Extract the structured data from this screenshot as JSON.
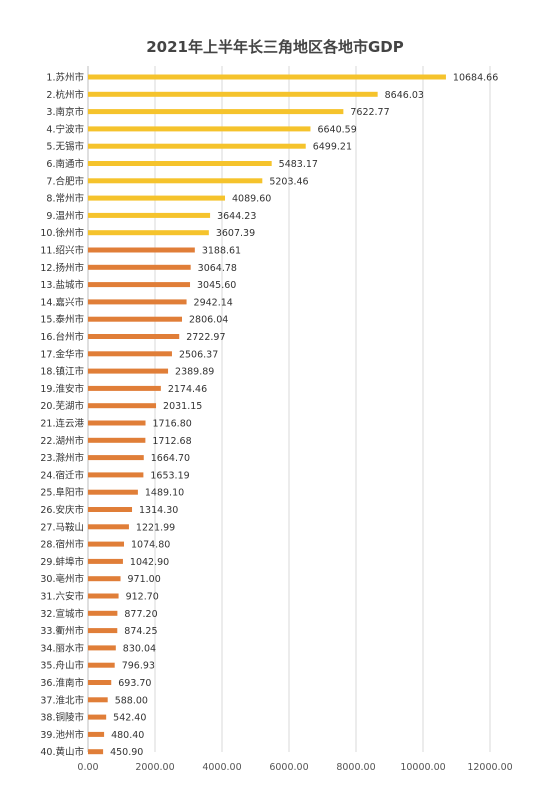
{
  "colors": {
    "top10": "#F5C32C",
    "others": "#E07E38",
    "background": "#FFFFFF",
    "grid": "#D9D9D9"
  },
  "chart_data": {
    "type": "bar",
    "orientation": "horizontal",
    "title": "2021年上半年长三角地区各地市GDP",
    "xlabel": "",
    "ylabel": "",
    "xlim": [
      0,
      12000
    ],
    "xticks": [
      0,
      2000,
      4000,
      6000,
      8000,
      10000,
      12000
    ],
    "xtick_labels": [
      "0.00",
      "2000.00",
      "4000.00",
      "6000.00",
      "8000.00",
      "10000.00",
      "12000.00"
    ],
    "grid": "vertical",
    "legend": "none",
    "categories": [
      "1.苏州市",
      "2.杭州市",
      "3.南京市",
      "4.宁波市",
      "5.无锡市",
      "6.南通市",
      "7.合肥市",
      "8.常州市",
      "9.温州市",
      "10.徐州市",
      "11.绍兴市",
      "12.扬州市",
      "13.盐城市",
      "14.嘉兴市",
      "15.泰州市",
      "16.台州市",
      "17.金华市",
      "18.镇江市",
      "19.淮安市",
      "20.芜湖市",
      "21.连云港",
      "22.湖州市",
      "23.滁州市",
      "24.宿迁市",
      "25.阜阳市",
      "26.安庆市",
      "27.马鞍山",
      "28.宿州市",
      "29.蚌埠市",
      "30.亳州市",
      "31.六安市",
      "32.宣城市",
      "33.衢州市",
      "34.丽水市",
      "35.舟山市",
      "36.淮南市",
      "37.淮北市",
      "38.铜陵市",
      "39.池州市",
      "40.黄山市"
    ],
    "values": [
      10684.66,
      8646.03,
      7622.77,
      6640.59,
      6499.21,
      5483.17,
      5203.46,
      4089.6,
      3644.23,
      3607.39,
      3188.61,
      3064.78,
      3045.6,
      2942.14,
      2806.04,
      2722.97,
      2506.37,
      2389.89,
      2174.46,
      2031.15,
      1716.8,
      1712.68,
      1664.7,
      1653.19,
      1489.1,
      1314.3,
      1221.99,
      1074.8,
      1042.9,
      971.0,
      912.7,
      877.2,
      874.25,
      830.04,
      796.93,
      693.7,
      588.0,
      542.4,
      480.4,
      450.9
    ],
    "value_labels": [
      "10684.66",
      "8646.03",
      "7622.77",
      "6640.59",
      "6499.21",
      "5483.17",
      "5203.46",
      "4089.60",
      "3644.23",
      "3607.39",
      "3188.61",
      "3064.78",
      "3045.60",
      "2942.14",
      "2806.04",
      "2722.97",
      "2506.37",
      "2389.89",
      "2174.46",
      "2031.15",
      "1716.80",
      "1712.68",
      "1664.70",
      "1653.19",
      "1489.10",
      "1314.30",
      "1221.99",
      "1074.80",
      "1042.90",
      "971.00",
      "912.70",
      "877.20",
      "874.25",
      "830.04",
      "796.93",
      "693.70",
      "588.00",
      "542.40",
      "480.40",
      "450.90"
    ],
    "highlight_top_n": 10
  }
}
